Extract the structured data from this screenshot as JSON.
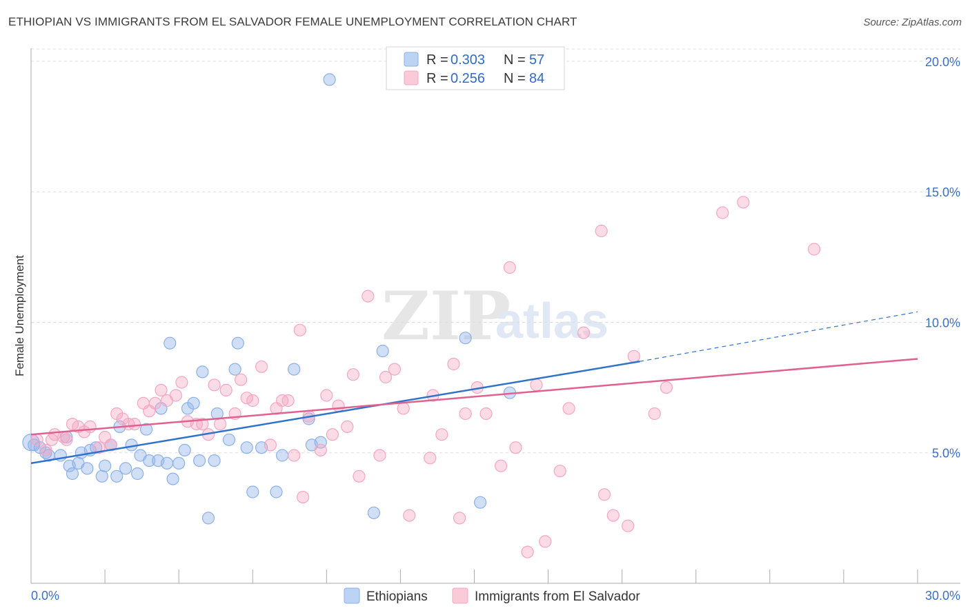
{
  "chart_data": {
    "type": "scatter",
    "title": "ETHIOPIAN VS IMMIGRANTS FROM EL SALVADOR FEMALE UNEMPLOYMENT CORRELATION CHART",
    "source": "Source: ZipAtlas.com",
    "ylabel": "Female Unemployment",
    "xlim": [
      0,
      30
    ],
    "ylim": [
      0,
      20.5
    ],
    "x_tick_labels": [
      "0.0%",
      "30.0%"
    ],
    "y_ticks": [
      5,
      10,
      15,
      20
    ],
    "y_tick_labels": [
      "5.0%",
      "10.0%",
      "15.0%",
      "20.0%"
    ],
    "watermark": [
      "ZIP",
      "atlas"
    ],
    "legend": {
      "rows": [
        {
          "r_label": "R = ",
          "r_value": "0.303",
          "n_label": "N = ",
          "n_value": "57"
        },
        {
          "r_label": "R = ",
          "r_value": "0.256",
          "n_label": "N = ",
          "n_value": "84"
        }
      ]
    },
    "series": [
      {
        "name": "Ethiopians",
        "color": "#8ab0e8",
        "line_color": "#2f72cc",
        "trend": {
          "x0": 0,
          "y0": 4.6,
          "x1": 20.6,
          "y1": 8.5,
          "dash_x1": 30,
          "dash_y1": 10.4
        },
        "points": [
          [
            0.0,
            5.4
          ],
          [
            0.3,
            5.2
          ],
          [
            0.6,
            4.9
          ],
          [
            0.5,
            5.0
          ],
          [
            1.0,
            4.9
          ],
          [
            1.2,
            5.6
          ],
          [
            1.3,
            4.5
          ],
          [
            1.4,
            4.2
          ],
          [
            1.6,
            4.6
          ],
          [
            1.7,
            5.0
          ],
          [
            1.9,
            4.4
          ],
          [
            2.0,
            5.1
          ],
          [
            2.2,
            5.2
          ],
          [
            2.4,
            4.1
          ],
          [
            2.5,
            4.5
          ],
          [
            2.7,
            5.3
          ],
          [
            2.9,
            4.1
          ],
          [
            3.0,
            6.0
          ],
          [
            3.2,
            4.4
          ],
          [
            3.4,
            5.3
          ],
          [
            3.6,
            4.2
          ],
          [
            3.7,
            4.9
          ],
          [
            3.9,
            5.9
          ],
          [
            4.0,
            4.7
          ],
          [
            4.3,
            4.7
          ],
          [
            4.4,
            6.7
          ],
          [
            4.6,
            4.6
          ],
          [
            4.7,
            9.2
          ],
          [
            4.8,
            4.0
          ],
          [
            5.0,
            4.6
          ],
          [
            5.2,
            5.1
          ],
          [
            5.3,
            6.7
          ],
          [
            5.5,
            6.9
          ],
          [
            5.7,
            4.7
          ],
          [
            5.8,
            8.1
          ],
          [
            6.0,
            2.5
          ],
          [
            6.2,
            4.7
          ],
          [
            6.3,
            6.5
          ],
          [
            6.7,
            5.5
          ],
          [
            6.9,
            8.2
          ],
          [
            7.0,
            9.2
          ],
          [
            7.3,
            5.2
          ],
          [
            7.5,
            3.5
          ],
          [
            7.8,
            5.2
          ],
          [
            8.3,
            3.5
          ],
          [
            8.5,
            4.9
          ],
          [
            8.9,
            8.2
          ],
          [
            9.4,
            6.3
          ],
          [
            9.5,
            5.3
          ],
          [
            9.8,
            5.4
          ],
          [
            10.1,
            19.3
          ],
          [
            11.6,
            2.7
          ],
          [
            11.9,
            8.9
          ],
          [
            14.7,
            9.4
          ],
          [
            15.2,
            3.1
          ],
          [
            16.2,
            7.3
          ],
          [
            0.1,
            5.3
          ]
        ]
      },
      {
        "name": "Immigrants from El Salvador",
        "color": "#f4a6c0",
        "line_color": "#e0608e",
        "trend": {
          "x0": 0,
          "y0": 5.7,
          "x1": 30,
          "y1": 8.6
        },
        "points": [
          [
            0.2,
            5.5
          ],
          [
            0.5,
            5.1
          ],
          [
            0.7,
            5.5
          ],
          [
            0.8,
            5.7
          ],
          [
            1.1,
            5.6
          ],
          [
            1.2,
            5.5
          ],
          [
            1.4,
            6.1
          ],
          [
            1.6,
            6.0
          ],
          [
            1.8,
            5.8
          ],
          [
            2.0,
            6.0
          ],
          [
            2.3,
            5.2
          ],
          [
            2.5,
            5.6
          ],
          [
            2.7,
            5.3
          ],
          [
            2.9,
            6.5
          ],
          [
            3.1,
            6.3
          ],
          [
            3.3,
            6.1
          ],
          [
            3.5,
            6.1
          ],
          [
            3.8,
            6.9
          ],
          [
            4.0,
            6.6
          ],
          [
            4.2,
            6.9
          ],
          [
            4.4,
            7.4
          ],
          [
            4.6,
            7.0
          ],
          [
            4.9,
            7.2
          ],
          [
            5.1,
            7.7
          ],
          [
            5.3,
            6.2
          ],
          [
            5.6,
            6.1
          ],
          [
            5.8,
            6.1
          ],
          [
            6.0,
            5.7
          ],
          [
            6.2,
            7.6
          ],
          [
            6.4,
            6.1
          ],
          [
            6.6,
            7.4
          ],
          [
            6.9,
            6.5
          ],
          [
            7.1,
            7.8
          ],
          [
            7.3,
            7.1
          ],
          [
            7.5,
            7.0
          ],
          [
            7.8,
            8.3
          ],
          [
            8.1,
            5.3
          ],
          [
            8.3,
            6.7
          ],
          [
            8.5,
            7.0
          ],
          [
            8.7,
            7.0
          ],
          [
            8.9,
            4.9
          ],
          [
            9.1,
            9.7
          ],
          [
            9.2,
            3.3
          ],
          [
            9.4,
            6.4
          ],
          [
            9.8,
            5.1
          ],
          [
            10.0,
            7.2
          ],
          [
            10.2,
            5.7
          ],
          [
            10.4,
            6.8
          ],
          [
            10.7,
            6.0
          ],
          [
            10.9,
            8.0
          ],
          [
            11.1,
            4.1
          ],
          [
            11.4,
            11.0
          ],
          [
            11.8,
            4.9
          ],
          [
            12.0,
            7.9
          ],
          [
            12.3,
            8.2
          ],
          [
            12.6,
            6.7
          ],
          [
            12.8,
            2.6
          ],
          [
            13.5,
            4.8
          ],
          [
            13.6,
            7.2
          ],
          [
            13.9,
            5.7
          ],
          [
            14.3,
            8.4
          ],
          [
            14.5,
            2.5
          ],
          [
            14.7,
            6.5
          ],
          [
            15.1,
            7.5
          ],
          [
            15.4,
            6.5
          ],
          [
            15.9,
            4.5
          ],
          [
            16.2,
            12.1
          ],
          [
            16.4,
            5.2
          ],
          [
            16.8,
            1.2
          ],
          [
            17.1,
            7.6
          ],
          [
            17.4,
            1.6
          ],
          [
            17.9,
            4.3
          ],
          [
            18.2,
            6.7
          ],
          [
            18.7,
            9.6
          ],
          [
            19.3,
            13.5
          ],
          [
            19.4,
            3.4
          ],
          [
            19.7,
            2.6
          ],
          [
            20.2,
            2.2
          ],
          [
            20.4,
            8.7
          ],
          [
            21.1,
            6.5
          ],
          [
            21.5,
            7.5
          ],
          [
            23.4,
            14.2
          ],
          [
            24.1,
            14.6
          ],
          [
            26.5,
            12.8
          ]
        ]
      }
    ]
  }
}
